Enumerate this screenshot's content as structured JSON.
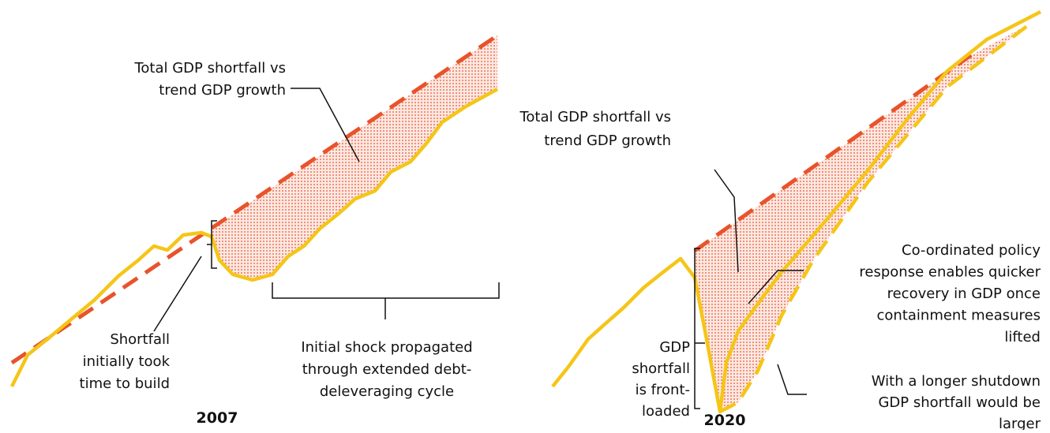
{
  "panels": [
    {
      "year": "2007",
      "shortfall_note": [
        "Total GDP shortfall vs",
        "trend GDP growth"
      ],
      "build_note": [
        "Shortfall",
        "initially took",
        "time to build"
      ],
      "cycle_note": [
        "Initial shock propagated",
        "through extended debt-",
        "deleveraging cycle"
      ]
    },
    {
      "year": "2020",
      "shortfall_note": [
        "Total GDP shortfall vs",
        "trend GDP growth"
      ],
      "frontload_note": [
        "GDP",
        "shortfall",
        "is front-",
        "loaded"
      ],
      "policy_note": [
        "Co-ordinated policy",
        "response enables quicker",
        "recovery in GDP once",
        "containment measures",
        "lifted"
      ],
      "shutdown_note": [
        "With a longer shutdown",
        "GDP shortfall would be",
        "larger"
      ]
    }
  ]
}
